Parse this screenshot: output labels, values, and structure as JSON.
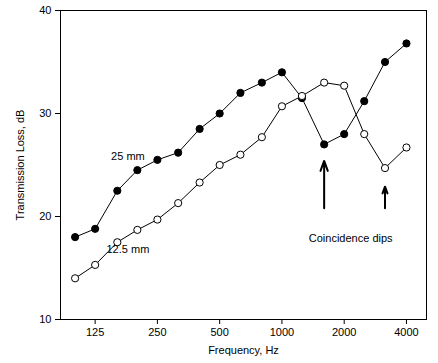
{
  "chart_data": {
    "type": "line",
    "x_label": "Frequency, Hz",
    "y_label": "Transmission Loss, dB",
    "log": "x",
    "x": [
      100,
      125,
      160,
      200,
      250,
      315,
      400,
      500,
      630,
      800,
      1000,
      1250,
      1600,
      2000,
      2500,
      3150,
      4000
    ],
    "series": [
      {
        "name": "25 mm",
        "color": "#000000",
        "marker": "circle",
        "line_style": "solid",
        "values": [
          18,
          18.8,
          22.5,
          24.5,
          25.5,
          26.2,
          28.5,
          30,
          32,
          33,
          34,
          31.5,
          27,
          28,
          31.2,
          35,
          36.8
        ]
      },
      {
        "name": "12.5 mm",
        "color": "#000000",
        "marker": "open circle",
        "line_style": "solid",
        "values": [
          14,
          15.3,
          17.5,
          18.7,
          19.7,
          21.3,
          23.3,
          25,
          26,
          27.7,
          30.7,
          31.7,
          33,
          32.7,
          28,
          24.7,
          26.7
        ]
      }
    ],
    "xlim": [
      85,
      5000
    ],
    "xticks": [
      125,
      250,
      500,
      1000,
      2000,
      4000
    ],
    "ylim": [
      10,
      40
    ],
    "yticks": [
      10,
      20,
      30,
      40
    ],
    "grid": false,
    "annotations": [
      {
        "text": "25 mm",
        "x": 180,
        "y": 25.8
      },
      {
        "text": "12.5 mm",
        "x": 180,
        "y": 16.8
      },
      {
        "text": "Coincidence dips",
        "x": 2150,
        "y": 17.9
      }
    ],
    "arrows": [
      {
        "x": 1600,
        "y_from": 20.8,
        "y_to": 25.4
      },
      {
        "x": 3150,
        "y_from": 20.8,
        "y_to": 22.9
      }
    ]
  }
}
